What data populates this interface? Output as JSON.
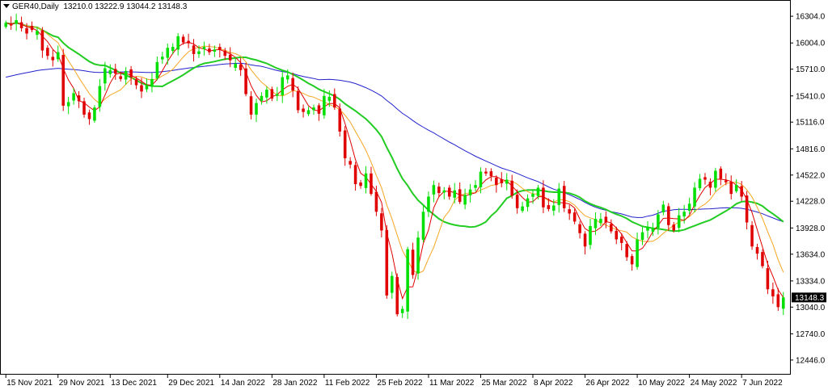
{
  "header": {
    "symbol": "GER40,Daily",
    "ohlc": "13210.0 13222.9 13044.2 13148.3"
  },
  "chart_data": {
    "type": "candlestick",
    "ylim": [
      12300,
      16450
    ],
    "y_ticks": [
      "16304.0",
      "16004.0",
      "15710.0",
      "15410.0",
      "15116.0",
      "14816.0",
      "14522.0",
      "14228.0",
      "13928.0",
      "13634.0",
      "13334.0",
      "13040.0",
      "12740.0",
      "12446.0"
    ],
    "x_ticks": [
      {
        "label": "15 Nov 2021",
        "i": 0
      },
      {
        "label": "29 Nov 2021",
        "i": 10
      },
      {
        "label": "13 Dec 2021",
        "i": 20
      },
      {
        "label": "29 Dec 2021",
        "i": 31
      },
      {
        "label": "14 Jan 2022",
        "i": 41
      },
      {
        "label": "28 Jan 2022",
        "i": 51
      },
      {
        "label": "11 Feb 2022",
        "i": 61
      },
      {
        "label": "25 Feb 2022",
        "i": 71
      },
      {
        "label": "11 Mar 2022",
        "i": 81
      },
      {
        "label": "25 Mar 2022",
        "i": 91
      },
      {
        "label": "8 Apr 2022",
        "i": 101
      },
      {
        "label": "26 Apr 2022",
        "i": 111
      },
      {
        "label": "10 May 2022",
        "i": 121
      },
      {
        "label": "24 May 2022",
        "i": 131
      },
      {
        "label": "7 Jun 2022",
        "i": 141
      }
    ],
    "last_price": "13148.3",
    "colors": {
      "bull": "#00e000",
      "bear": "#e00000",
      "ma_fast": "#e00000",
      "ma_mid": "#f5a623",
      "ma_slow": "#22cc22",
      "ma_long": "#2222cc",
      "axis": "#000000",
      "last_label_bg": "#000000"
    },
    "closes": [
      16230,
      16200,
      16260,
      16170,
      16110,
      16150,
      16140,
      15920,
      15860,
      15810,
      15900,
      15300,
      15340,
      15440,
      15350,
      15200,
      15150,
      15280,
      15520,
      15720,
      15700,
      15660,
      15600,
      15690,
      15620,
      15530,
      15460,
      15530,
      15600,
      15790,
      15850,
      15950,
      15960,
      16080,
      16010,
      16000,
      15880,
      15910,
      15960,
      15900,
      15930,
      15930,
      15860,
      15810,
      15770,
      15700,
      15430,
      15200,
      15330,
      15410,
      15480,
      15380,
      15430,
      15620,
      15640,
      15470,
      15250,
      15230,
      15250,
      15280,
      15210,
      15410,
      15400,
      15280,
      15010,
      14710,
      14640,
      14420,
      14400,
      14540,
      14310,
      14110,
      13900,
      13170,
      13390,
      12960,
      13020,
      13690,
      13400,
      13820,
      14110,
      14280,
      14410,
      14320,
      14350,
      14280,
      14350,
      14220,
      14300,
      14360,
      14410,
      14560,
      14540,
      14510,
      14410,
      14430,
      14470,
      14290,
      14150,
      14170,
      14260,
      14310,
      14380,
      14160,
      14140,
      14180,
      14370,
      14150,
      14090,
      14000,
      13870,
      13720,
      13950,
      14030,
      14030,
      13990,
      13890,
      13800,
      13760,
      13600,
      13520,
      13800,
      13880,
      13940,
      13930,
      14080,
      14190,
      13960,
      13900,
      14070,
      14110,
      14200,
      14380,
      14480,
      14470,
      14380,
      14570,
      14480,
      14440,
      14310,
      14410,
      14280,
      13990,
      13720,
      13640,
      13500,
      13240,
      13160,
      13040,
      13148
    ]
  }
}
